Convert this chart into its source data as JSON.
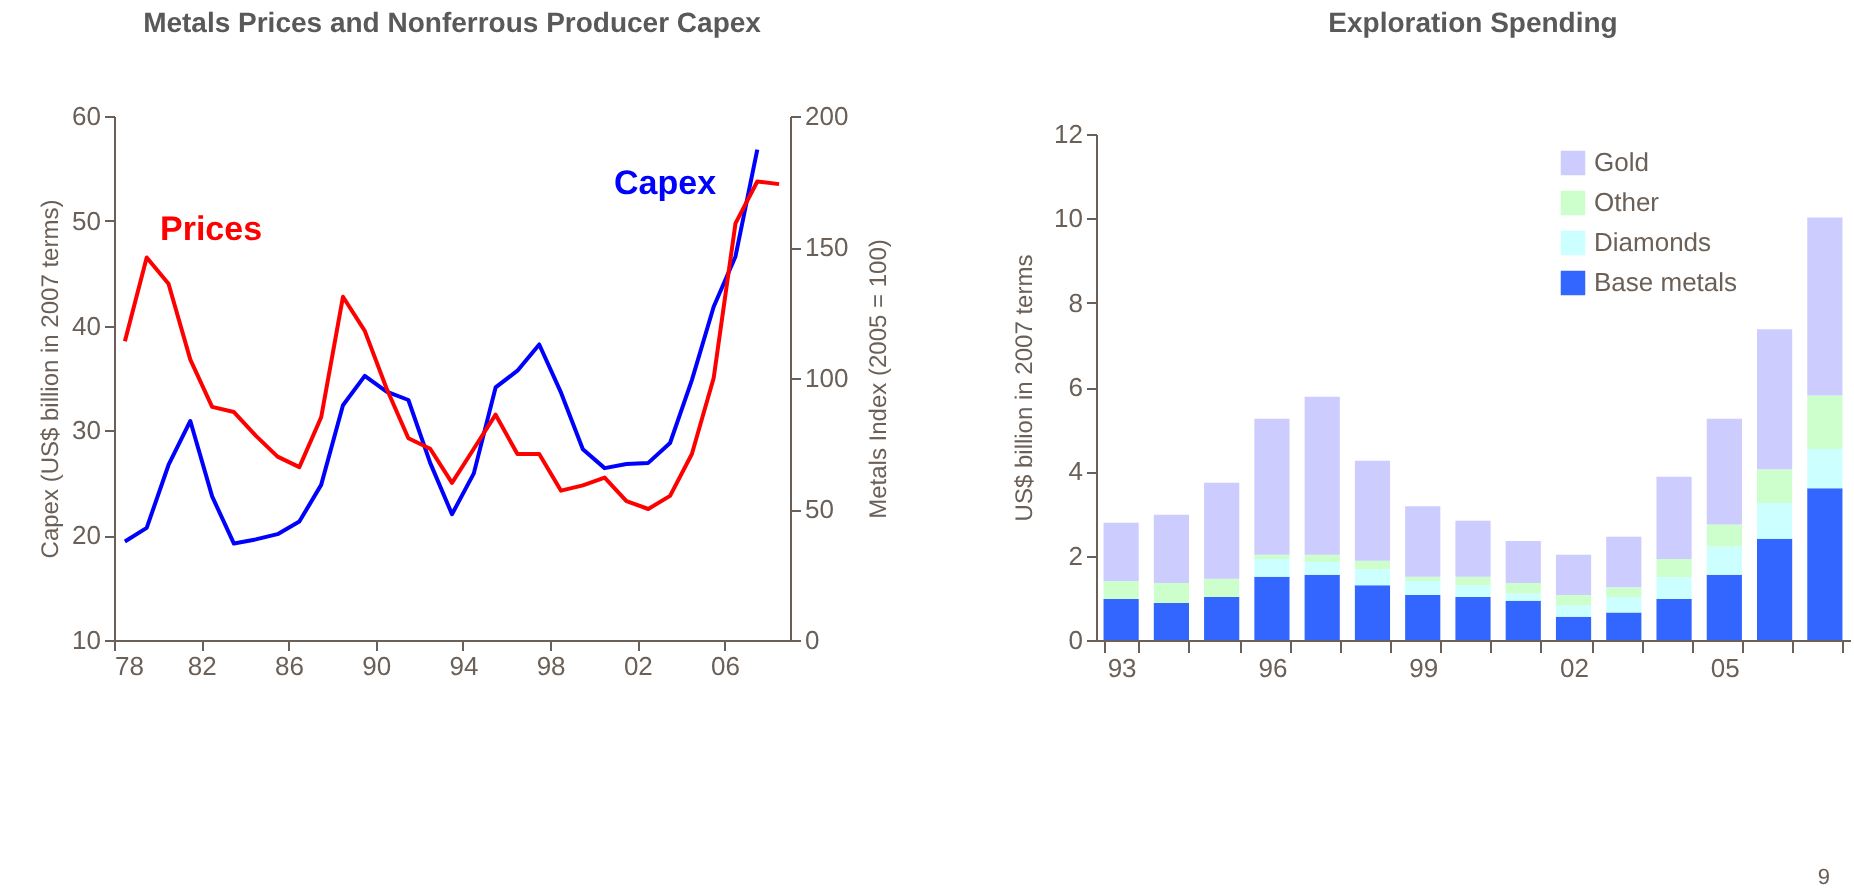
{
  "chart_data": [
    {
      "type": "line",
      "title": "Metals Prices and Nonferrous Producer Capex",
      "ylabel": "Capex (US$ billion in 2007 terms)",
      "y2label": "Metals Index (2005 = 100)",
      "xlim": [
        1978,
        2009
      ],
      "xticks": [
        {
          "value": 1978,
          "label": "78"
        },
        {
          "value": 1982,
          "label": "82"
        },
        {
          "value": 1986,
          "label": "86"
        },
        {
          "value": 1990,
          "label": "90"
        },
        {
          "value": 1994,
          "label": "94"
        },
        {
          "value": 1998,
          "label": "98"
        },
        {
          "value": 2002,
          "label": "02"
        },
        {
          "value": 2006,
          "label": "06"
        }
      ],
      "ylim": [
        10,
        60
      ],
      "yticks": [
        10,
        20,
        30,
        40,
        50,
        60
      ],
      "y2lim": [
        0,
        200
      ],
      "y2ticks": [
        0,
        50,
        100,
        150,
        200
      ],
      "series": [
        {
          "name": "Capex",
          "color": "#0000ff",
          "x": [
            1978.5,
            1979.5,
            1980.5,
            1981.5,
            1982.5,
            1983.5,
            1984.5,
            1985.5,
            1986.5,
            1987.5,
            1988.5,
            1989.5,
            1990.5,
            1991.5,
            1992.5,
            1993.5,
            1994.5,
            1995.5,
            1996.5,
            1997.5,
            1998.5,
            1999.5,
            2000.5,
            2001.5,
            2002.5,
            2003.5,
            2004.5,
            2005.5,
            2006.5,
            2007.5
          ],
          "values": [
            19.4,
            20.7,
            26.7,
            30.9,
            23.7,
            19.2,
            19.6,
            20.1,
            21.3,
            24.8,
            32.4,
            35.2,
            33.7,
            32.9,
            26.9,
            22.0,
            25.9,
            34.1,
            35.7,
            38.2,
            33.6,
            28.2,
            26.4,
            26.8,
            26.9,
            28.8,
            34.8,
            41.8,
            46.6,
            56.8
          ]
        },
        {
          "name": "Prices",
          "color": "#ff0000",
          "axis": "y2",
          "x": [
            1978.5,
            1979.5,
            1980.5,
            1981.5,
            1982.5,
            1983.5,
            1984.5,
            1985.5,
            1986.5,
            1987.5,
            1988.5,
            1989.5,
            1990.5,
            1991.5,
            1992.5,
            1993.5,
            1994.5,
            1995.5,
            1996.5,
            1997.5,
            1998.5,
            1999.5,
            2000.5,
            2001.5,
            2002.5,
            2003.5,
            2004.5,
            2005.5,
            2006.5,
            2007.5,
            2008.5
          ],
          "values": [
            114,
            146,
            136,
            107,
            89,
            87,
            78,
            70,
            66,
            85,
            131,
            118,
            96,
            77,
            73,
            60,
            73,
            86,
            71,
            71,
            57,
            59,
            62,
            53,
            50,
            55,
            71,
            100,
            159,
            175,
            174
          ]
        }
      ]
    },
    {
      "type": "bar",
      "stacked": true,
      "title": "Exploration Spending",
      "ylabel": "US$ billion in 2007 terms",
      "legend": "top right",
      "categories": [
        "93",
        null,
        null,
        "96",
        null,
        null,
        "99",
        null,
        null,
        "02",
        null,
        null,
        "05",
        null,
        null
      ],
      "ylim": [
        0,
        12
      ],
      "yticks": [
        0,
        2,
        4,
        6,
        8,
        10,
        12
      ],
      "series": [
        {
          "name": "Base metals",
          "color": "#3366ff",
          "values": [
            0.97,
            0.88,
            1.02,
            1.5,
            1.55,
            1.3,
            1.07,
            1.02,
            0.93,
            0.55,
            0.65,
            0.97,
            1.55,
            2.4,
            3.6
          ]
        },
        {
          "name": "Diamonds",
          "color": "#ccffff",
          "values": [
            0,
            0,
            0,
            0.42,
            0.3,
            0.38,
            0.33,
            0.28,
            0.17,
            0.27,
            0.37,
            0.52,
            0.67,
            0.85,
            0.93
          ]
        },
        {
          "name": "Other",
          "color": "#ccffcc",
          "values": [
            0.43,
            0.47,
            0.43,
            0.1,
            0.17,
            0.2,
            0.1,
            0.2,
            0.25,
            0.25,
            0.23,
            0.43,
            0.52,
            0.8,
            1.27
          ]
        },
        {
          "name": "Gold",
          "color": "#ccccff",
          "values": [
            1.38,
            1.62,
            2.28,
            3.23,
            3.75,
            2.37,
            1.67,
            1.33,
            1.0,
            0.95,
            1.2,
            1.95,
            2.51,
            3.32,
            4.22
          ]
        }
      ],
      "annotations": [
        "9"
      ]
    }
  ]
}
